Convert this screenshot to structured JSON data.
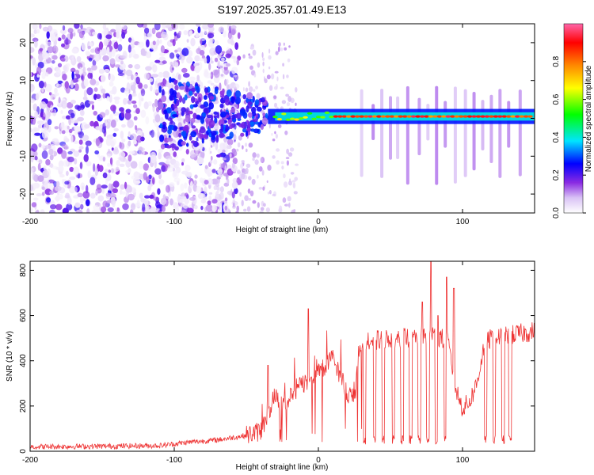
{
  "title": "S197.2025.357.01.49.E13",
  "colors": {
    "snr_line": "#ee3333",
    "colormap": [
      "#ffffff",
      "#d9c2f5",
      "#8a2be2",
      "#0000ff",
      "#00e5ff",
      "#00ff00",
      "#ffff00",
      "#ff8800",
      "#ff0000",
      "#ff66aa"
    ]
  },
  "chart_data": [
    {
      "type": "heatmap",
      "title": "S197.2025.357.01.49.E13",
      "xlabel": "Height of straight line (km)",
      "ylabel": "Frequency (Hz)",
      "xlim": [
        -200,
        150
      ],
      "ylim": [
        -25,
        25
      ],
      "xticks": [
        -200,
        -100,
        0,
        100
      ],
      "yticks": [
        -20,
        -10,
        0,
        10,
        20
      ],
      "colorbar": {
        "label": "Normalized spectral amplitude",
        "range": [
          0,
          1
        ],
        "ticks": [
          "0.0",
          "0.2",
          "0.4",
          "0.6",
          "0.8"
        ]
      },
      "description_values": {
        "noise_region_x": [
          -200,
          -55
        ],
        "signal_line_frequency_hz": 0.5,
        "signal_start_x": -35
      }
    },
    {
      "type": "line",
      "xlabel": "Height of straight line (km)",
      "ylabel": "SNR (10 * v/v)",
      "xlim": [
        -200,
        150
      ],
      "ylim": [
        0,
        840
      ],
      "xticks": [
        -200,
        -100,
        0,
        100
      ],
      "yticks": [
        0,
        200,
        400,
        600,
        800
      ],
      "series": [
        {
          "x": [
            -200,
            -150,
            -110,
            -90,
            -70,
            -60,
            -50,
            -40,
            -35,
            -30,
            -25,
            -20,
            -15,
            -10,
            -5,
            0,
            5,
            10,
            15,
            20,
            25,
            30,
            35,
            40,
            50,
            60,
            70,
            80,
            90,
            95,
            100,
            105,
            110,
            115,
            120,
            130,
            140,
            150
          ],
          "y": [
            20,
            22,
            25,
            40,
            50,
            60,
            70,
            90,
            160,
            260,
            200,
            230,
            280,
            300,
            330,
            360,
            380,
            410,
            340,
            260,
            230,
            480,
            480,
            490,
            500,
            500,
            510,
            520,
            480,
            280,
            190,
            220,
            300,
            470,
            500,
            510,
            520,
            530
          ]
        }
      ]
    }
  ]
}
